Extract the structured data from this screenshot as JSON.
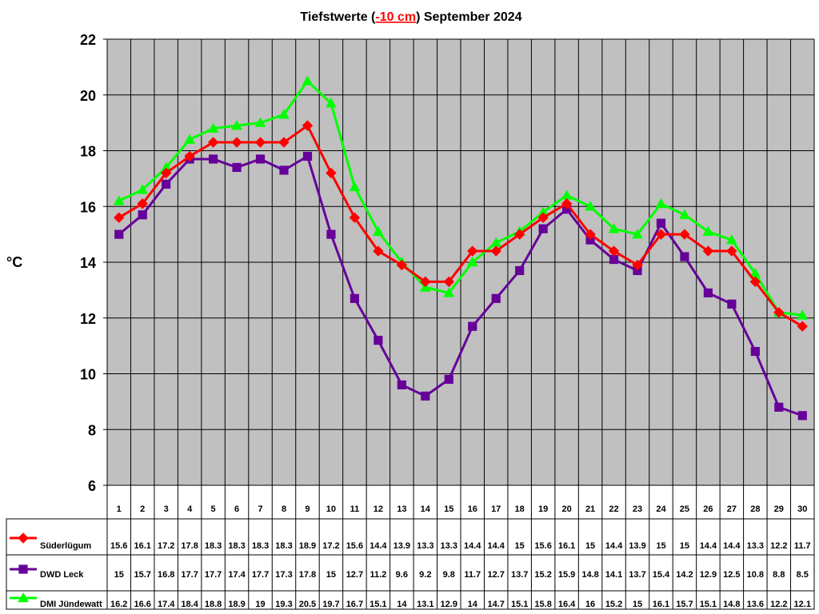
{
  "chart_data": {
    "type": "line",
    "title_parts": [
      "Tiefstwerte (",
      "-10 cm",
      ") September 2024"
    ],
    "ylabel": "°C",
    "xlabel": "",
    "ylim": [
      6,
      22
    ],
    "yticks": [
      "6",
      "8",
      "10",
      "12",
      "14",
      "16",
      "18",
      "20",
      "22"
    ],
    "categories": [
      "1",
      "2",
      "3",
      "4",
      "5",
      "6",
      "7",
      "8",
      "9",
      "10",
      "11",
      "12",
      "13",
      "14",
      "15",
      "16",
      "17",
      "18",
      "19",
      "20",
      "21",
      "22",
      "23",
      "24",
      "25",
      "26",
      "27",
      "28",
      "29",
      "30"
    ],
    "grid": true,
    "legend_placement": "bottom data table",
    "series": [
      {
        "name": "Süderlügum",
        "color": "#ff0000",
        "marker": "diamond",
        "values": [
          15.6,
          16.1,
          17.2,
          17.8,
          18.3,
          18.3,
          18.3,
          18.3,
          18.9,
          17.2,
          15.6,
          14.4,
          13.9,
          13.3,
          13.3,
          14.4,
          14.4,
          15,
          15.6,
          16.1,
          15,
          14.4,
          13.9,
          15,
          15,
          14.4,
          14.4,
          13.3,
          12.2,
          11.7
        ],
        "labels": [
          "15.6",
          "16.1",
          "17.2",
          "17.8",
          "18.3",
          "18.3",
          "18.3",
          "18.3",
          "18.9",
          "17.2",
          "15.6",
          "14.4",
          "13.9",
          "13.3",
          "13.3",
          "14.4",
          "14.4",
          "15",
          "15.6",
          "16.1",
          "15",
          "14.4",
          "13.9",
          "15",
          "15",
          "14.4",
          "14.4",
          "13.3",
          "12.2",
          "11.7"
        ]
      },
      {
        "name": "DWD Leck",
        "color": "#660099",
        "marker": "square",
        "values": [
          15,
          15.7,
          16.8,
          17.7,
          17.7,
          17.4,
          17.7,
          17.3,
          17.8,
          15,
          12.7,
          11.2,
          9.6,
          9.2,
          9.8,
          11.7,
          12.7,
          13.7,
          15.2,
          15.9,
          14.8,
          14.1,
          13.7,
          15.4,
          14.2,
          12.9,
          12.5,
          10.8,
          8.8,
          8.5
        ],
        "labels": [
          "15",
          "15.7",
          "16.8",
          "17.7",
          "17.7",
          "17.4",
          "17.7",
          "17.3",
          "17.8",
          "15",
          "12.7",
          "11.2",
          "9.6",
          "9.2",
          "9.8",
          "11.7",
          "12.7",
          "13.7",
          "15.2",
          "15.9",
          "14.8",
          "14.1",
          "13.7",
          "15.4",
          "14.2",
          "12.9",
          "12.5",
          "10.8",
          "8.8",
          "8.5"
        ]
      },
      {
        "name": "DMI Jündewatt",
        "color": "#00ff00",
        "marker": "triangle",
        "values": [
          16.2,
          16.6,
          17.4,
          18.4,
          18.8,
          18.9,
          19,
          19.3,
          20.5,
          19.7,
          16.7,
          15.1,
          14,
          13.1,
          12.9,
          14,
          14.7,
          15.1,
          15.8,
          16.4,
          16,
          15.2,
          15,
          16.1,
          15.7,
          15.1,
          14.8,
          13.6,
          12.2,
          12.1
        ],
        "labels": [
          "16.2",
          "16.6",
          "17.4",
          "18.4",
          "18.8",
          "18.9",
          "19",
          "19.3",
          "20.5",
          "19.7",
          "16.7",
          "15.1",
          "14",
          "13.1",
          "12.9",
          "14",
          "14.7",
          "15.1",
          "15.8",
          "16.4",
          "16",
          "15.2",
          "15",
          "16.1",
          "15.7",
          "15.1",
          "14.8",
          "13.6",
          "12.2",
          "12.1"
        ]
      }
    ]
  }
}
